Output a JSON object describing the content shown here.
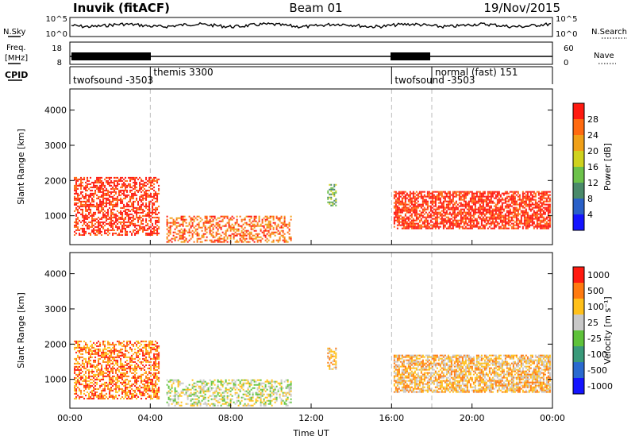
{
  "header": {
    "station": "Inuvik (fitACF)",
    "beam": "Beam 01",
    "date": "19/Nov/2015"
  },
  "noise_panel": {
    "left_label": "N.Sky",
    "right_label": "N.Search",
    "ticks_left": [
      "10^5",
      "10^0"
    ],
    "ticks_right": [
      "10^5",
      "10^0"
    ]
  },
  "freq_panel": {
    "left_label_1": "Freq.",
    "left_label_2": "[MHz]",
    "right_label": "Nave",
    "ticks_left": [
      "18",
      "8"
    ],
    "ticks_right": [
      "60",
      "0"
    ]
  },
  "cpid_panel": {
    "label": "CPID",
    "programs": [
      {
        "name": "twofsound -3503",
        "start": 0
      },
      {
        "name": "themis 3300",
        "start": 4
      },
      {
        "name": "twofsound -3503",
        "start": 16
      },
      {
        "name": "normal (fast) 151",
        "start": 18
      }
    ],
    "divider_times": [
      4,
      16,
      18
    ]
  },
  "chart_data": [
    {
      "type": "heatmap",
      "name": "power",
      "ylabel": "Slant Range [km]",
      "ylim": [
        180,
        4600
      ],
      "yticks": [
        1000,
        2000,
        3000,
        4000
      ],
      "xlim": [
        0,
        24
      ],
      "colorbar_label": "Power [dB]",
      "colorbar_ticks": [
        "4",
        "8",
        "12",
        "16",
        "20",
        "24",
        "28"
      ],
      "colors": [
        "#1414ff",
        "#2a60c8",
        "#4a8a6a",
        "#6cc24a",
        "#cfd21e",
        "#f0a018",
        "#ff6a10",
        "#ff1a10"
      ],
      "scatter_regions": [
        {
          "t0": 0.2,
          "t1": 4.4,
          "r0": 450,
          "r1": 2100,
          "level": 7,
          "density": 0.55
        },
        {
          "t0": 4.8,
          "t1": 11.0,
          "r0": 250,
          "r1": 1000,
          "level": 6,
          "density": 0.45
        },
        {
          "t0": 12.8,
          "t1": 13.2,
          "r0": 1300,
          "r1": 1900,
          "level": 3,
          "density": 0.5
        },
        {
          "t0": 16.1,
          "t1": 23.9,
          "r0": 650,
          "r1": 1700,
          "level": 7,
          "density": 0.7
        }
      ]
    },
    {
      "type": "heatmap",
      "name": "velocity",
      "ylabel": "Slant Range [km]",
      "ylim": [
        180,
        4600
      ],
      "yticks": [
        1000,
        2000,
        3000,
        4000
      ],
      "xlim": [
        0,
        24
      ],
      "xticks": [
        "00:00",
        "04:00",
        "08:00",
        "12:00",
        "16:00",
        "20:00",
        "00:00"
      ],
      "xlabel": "Time UT",
      "colorbar_label": "Velocity [m s⁻¹]",
      "colorbar_ticks": [
        "1000",
        "500",
        "100",
        "25",
        "-25",
        "-100",
        "-500",
        "-1000"
      ],
      "colors": [
        "#1414ff",
        "#2a6ad0",
        "#3a9a7a",
        "#5ec23a",
        "#c8c8c8",
        "#ffc01a",
        "#ff7a10",
        "#ff1a10"
      ],
      "scatter_regions": [
        {
          "t0": 0.2,
          "t1": 4.4,
          "r0": 450,
          "r1": 2100,
          "level": 6,
          "density": 0.55
        },
        {
          "t0": 4.8,
          "t1": 11.0,
          "r0": 250,
          "r1": 1000,
          "level": 4,
          "density": 0.45
        },
        {
          "t0": 12.8,
          "t1": 13.2,
          "r0": 1300,
          "r1": 1900,
          "level": 5,
          "density": 0.5
        },
        {
          "t0": 16.1,
          "t1": 23.9,
          "r0": 650,
          "r1": 1700,
          "level": 5,
          "density": 0.7
        }
      ]
    }
  ]
}
